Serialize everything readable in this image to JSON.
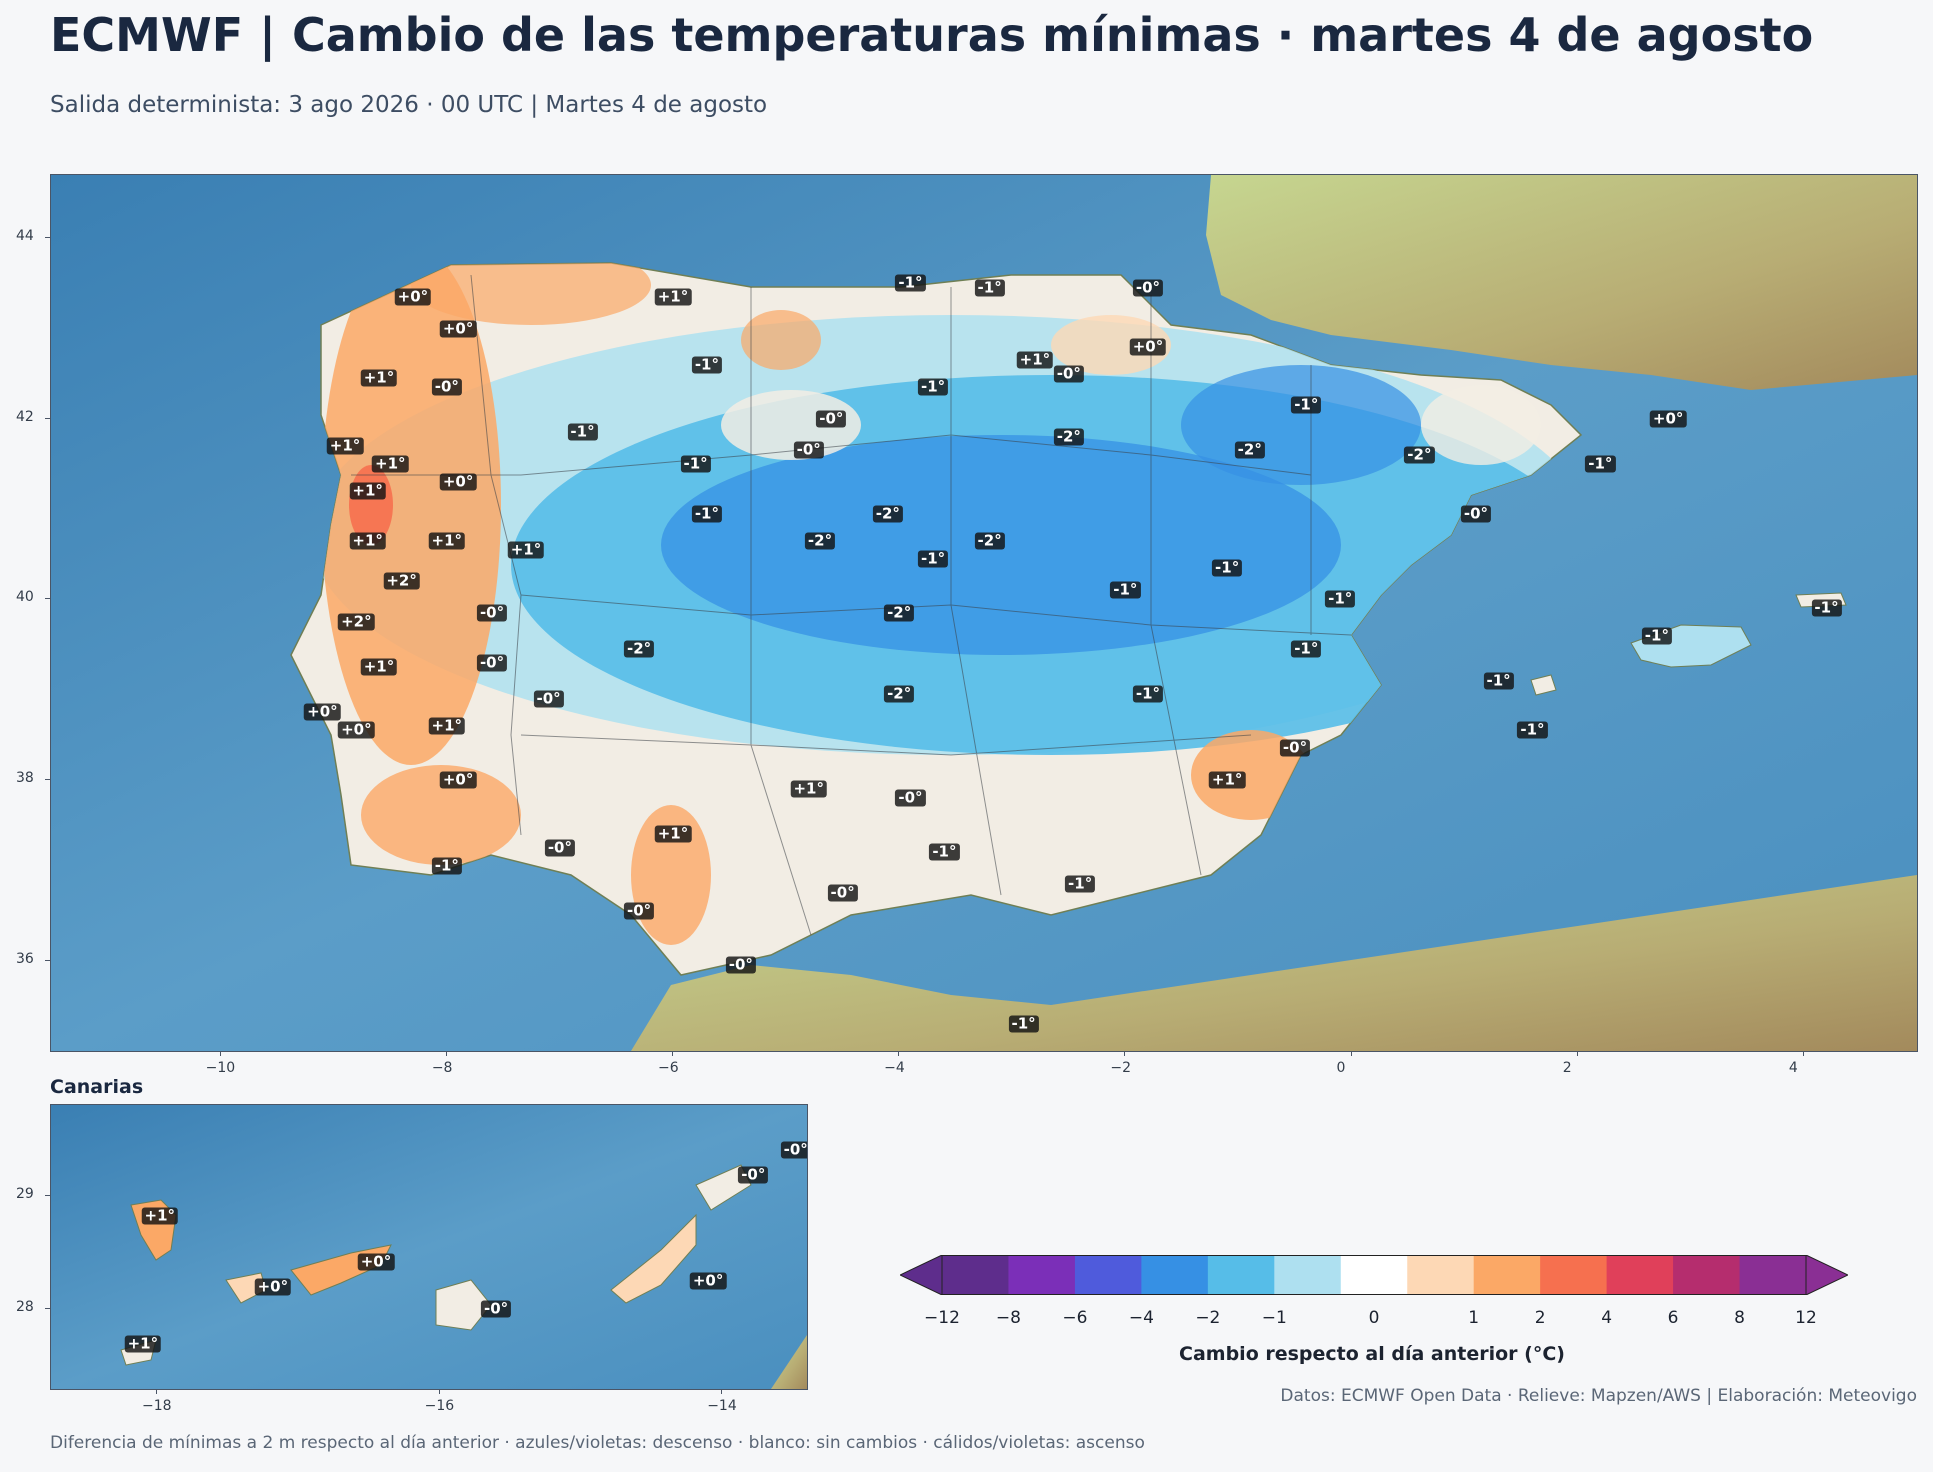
{
  "header": {
    "title": "ECMWF | Cambio de las temperaturas mínimas · martes 4 de agosto",
    "subtitle": "Salida determinista: 3 ago 2026 · 00 UTC  |  Martes 4 de agosto"
  },
  "main_map": {
    "lon_range": [
      -11.5,
      5.0
    ],
    "lat_range": [
      35.0,
      44.7
    ],
    "x_ticks": [
      "−10",
      "−8",
      "−6",
      "−4",
      "−2",
      "0",
      "2",
      "4"
    ],
    "x_tick_values": [
      -10,
      -8,
      -6,
      -4,
      -2,
      0,
      2,
      4
    ],
    "y_ticks": [
      "36",
      "38",
      "40",
      "42",
      "44"
    ],
    "y_tick_values": [
      36,
      38,
      40,
      42,
      44
    ],
    "labels": [
      {
        "lon": -8.3,
        "lat": 43.35,
        "text": "+0°"
      },
      {
        "lon": -6.0,
        "lat": 43.35,
        "text": "+1°"
      },
      {
        "lon": -3.9,
        "lat": 43.5,
        "text": "-1°"
      },
      {
        "lon": -3.2,
        "lat": 43.45,
        "text": "-1°"
      },
      {
        "lon": -1.8,
        "lat": 43.45,
        "text": "-0°"
      },
      {
        "lon": -7.9,
        "lat": 43.0,
        "text": "+0°"
      },
      {
        "lon": -1.8,
        "lat": 42.8,
        "text": "+0°"
      },
      {
        "lon": -5.7,
        "lat": 42.6,
        "text": "-1°"
      },
      {
        "lon": -2.8,
        "lat": 42.65,
        "text": "+1°"
      },
      {
        "lon": -2.5,
        "lat": 42.5,
        "text": "-0°"
      },
      {
        "lon": -8.6,
        "lat": 42.45,
        "text": "+1°"
      },
      {
        "lon": -8.0,
        "lat": 42.35,
        "text": "-0°"
      },
      {
        "lon": -3.7,
        "lat": 42.35,
        "text": "-1°"
      },
      {
        "lon": -0.4,
        "lat": 42.15,
        "text": "-1°"
      },
      {
        "lon": -4.6,
        "lat": 42.0,
        "text": "-0°"
      },
      {
        "lon": 2.8,
        "lat": 42.0,
        "text": "+0°"
      },
      {
        "lon": -6.8,
        "lat": 41.85,
        "text": "-1°"
      },
      {
        "lon": -2.5,
        "lat": 41.8,
        "text": "-2°"
      },
      {
        "lon": -8.9,
        "lat": 41.7,
        "text": "+1°"
      },
      {
        "lon": -4.8,
        "lat": 41.65,
        "text": "-0°"
      },
      {
        "lon": -0.9,
        "lat": 41.65,
        "text": "-2°"
      },
      {
        "lon": 0.6,
        "lat": 41.6,
        "text": "-2°"
      },
      {
        "lon": -8.5,
        "lat": 41.5,
        "text": "+1°"
      },
      {
        "lon": -5.8,
        "lat": 41.5,
        "text": "-1°"
      },
      {
        "lon": 2.2,
        "lat": 41.5,
        "text": "-1°"
      },
      {
        "lon": -7.9,
        "lat": 41.3,
        "text": "+0°"
      },
      {
        "lon": -8.7,
        "lat": 41.2,
        "text": "+1°"
      },
      {
        "lon": -5.7,
        "lat": 40.95,
        "text": "-1°"
      },
      {
        "lon": -4.1,
        "lat": 40.95,
        "text": "-2°"
      },
      {
        "lon": 1.1,
        "lat": 40.95,
        "text": "-0°"
      },
      {
        "lon": -8.7,
        "lat": 40.65,
        "text": "+1°"
      },
      {
        "lon": -8.0,
        "lat": 40.65,
        "text": "+1°"
      },
      {
        "lon": -4.7,
        "lat": 40.65,
        "text": "-2°"
      },
      {
        "lon": -3.2,
        "lat": 40.65,
        "text": "-2°"
      },
      {
        "lon": -7.3,
        "lat": 40.55,
        "text": "+1°"
      },
      {
        "lon": -3.7,
        "lat": 40.45,
        "text": "-1°"
      },
      {
        "lon": -1.1,
        "lat": 40.35,
        "text": "-1°"
      },
      {
        "lon": -8.4,
        "lat": 40.2,
        "text": "+2°"
      },
      {
        "lon": -2.0,
        "lat": 40.1,
        "text": "-1°"
      },
      {
        "lon": -0.1,
        "lat": 40.0,
        "text": "-1°"
      },
      {
        "lon": 4.2,
        "lat": 39.9,
        "text": "-1°"
      },
      {
        "lon": -7.6,
        "lat": 39.85,
        "text": "-0°"
      },
      {
        "lon": -4.0,
        "lat": 39.85,
        "text": "-2°"
      },
      {
        "lon": -8.8,
        "lat": 39.75,
        "text": "+2°"
      },
      {
        "lon": 2.7,
        "lat": 39.6,
        "text": "-1°"
      },
      {
        "lon": -6.3,
        "lat": 39.45,
        "text": "-2°"
      },
      {
        "lon": -0.4,
        "lat": 39.45,
        "text": "-1°"
      },
      {
        "lon": -7.6,
        "lat": 39.3,
        "text": "-0°"
      },
      {
        "lon": -8.6,
        "lat": 39.25,
        "text": "+1°"
      },
      {
        "lon": 1.3,
        "lat": 39.1,
        "text": "-1°"
      },
      {
        "lon": -4.0,
        "lat": 38.95,
        "text": "-2°"
      },
      {
        "lon": -1.8,
        "lat": 38.95,
        "text": "-1°"
      },
      {
        "lon": -7.1,
        "lat": 38.9,
        "text": "-0°"
      },
      {
        "lon": -9.1,
        "lat": 38.75,
        "text": "+0°"
      },
      {
        "lon": -8.0,
        "lat": 38.6,
        "text": "+1°"
      },
      {
        "lon": -8.8,
        "lat": 38.55,
        "text": "+0°"
      },
      {
        "lon": 1.6,
        "lat": 38.55,
        "text": "-1°"
      },
      {
        "lon": -0.5,
        "lat": 38.35,
        "text": "-0°"
      },
      {
        "lon": -7.9,
        "lat": 38.0,
        "text": "+0°"
      },
      {
        "lon": -1.1,
        "lat": 38.0,
        "text": "+1°"
      },
      {
        "lon": -4.8,
        "lat": 37.9,
        "text": "+1°"
      },
      {
        "lon": -3.9,
        "lat": 37.8,
        "text": "-0°"
      },
      {
        "lon": -6.0,
        "lat": 37.4,
        "text": "+1°"
      },
      {
        "lon": -7.0,
        "lat": 37.25,
        "text": "-0°"
      },
      {
        "lon": -3.6,
        "lat": 37.2,
        "text": "-1°"
      },
      {
        "lon": -8.0,
        "lat": 37.05,
        "text": "-1°"
      },
      {
        "lon": -2.4,
        "lat": 36.85,
        "text": "-1°"
      },
      {
        "lon": -4.5,
        "lat": 36.75,
        "text": "-0°"
      },
      {
        "lon": -6.3,
        "lat": 36.55,
        "text": "-0°"
      },
      {
        "lon": -5.4,
        "lat": 35.95,
        "text": "-0°"
      },
      {
        "lon": -2.9,
        "lat": 35.3,
        "text": "-1°"
      }
    ]
  },
  "inset": {
    "title": "Canarias",
    "lon_range": [
      -18.75,
      -13.4
    ],
    "lat_range": [
      27.3,
      29.8
    ],
    "x_ticks": [
      "−18",
      "−16",
      "−14"
    ],
    "x_tick_values": [
      -18,
      -16,
      -14
    ],
    "y_ticks": [
      "28",
      "29"
    ],
    "y_tick_values": [
      28,
      29
    ],
    "labels": [
      {
        "lon": -17.98,
        "lat": 28.82,
        "text": "+1°"
      },
      {
        "lon": -17.18,
        "lat": 28.2,
        "text": "+0°"
      },
      {
        "lon": -16.45,
        "lat": 28.42,
        "text": "+0°"
      },
      {
        "lon": -15.6,
        "lat": 28.0,
        "text": "-0°"
      },
      {
        "lon": -14.1,
        "lat": 28.25,
        "text": "+0°"
      },
      {
        "lon": -13.78,
        "lat": 29.18,
        "text": "-0°"
      },
      {
        "lon": -13.48,
        "lat": 29.4,
        "text": "-0°"
      },
      {
        "lon": -18.1,
        "lat": 27.7,
        "text": "+1°"
      }
    ]
  },
  "colorbar": {
    "title": "Cambio respecto al día anterior (°C)",
    "tick_labels": [
      "−12",
      "−8",
      "−6",
      "−4",
      "−2",
      "−1",
      "0",
      "1",
      "2",
      "4",
      "6",
      "8",
      "12"
    ],
    "bins": [
      {
        "from": -12,
        "to": -8,
        "color": "#5e2d8c"
      },
      {
        "from": -8,
        "to": -6,
        "color": "#7b2fb8"
      },
      {
        "from": -6,
        "to": -4,
        "color": "#4f5bdc"
      },
      {
        "from": -4,
        "to": -2,
        "color": "#3690e4"
      },
      {
        "from": -2,
        "to": -1,
        "color": "#56bde8"
      },
      {
        "from": -1,
        "to": -0.5,
        "color": "#aee0f0"
      },
      {
        "from": -0.5,
        "to": 0.5,
        "color": "#ffffff"
      },
      {
        "from": 0.5,
        "to": 1,
        "color": "#fdd8b5"
      },
      {
        "from": 1,
        "to": 2,
        "color": "#fba866"
      },
      {
        "from": 2,
        "to": 4,
        "color": "#f6704f"
      },
      {
        "from": 4,
        "to": 6,
        "color": "#e0405a"
      },
      {
        "from": 6,
        "to": 8,
        "color": "#b52d6e"
      },
      {
        "from": 8,
        "to": 12,
        "color": "#8a2f94"
      }
    ],
    "under_color": "#5e2d8c",
    "over_color": "#8a2f94"
  },
  "footer": {
    "credits": "Datos: ECMWF Open Data · Relieve: Mapzen/AWS  |  Elaboración: Meteovigo",
    "note": "Diferencia de mínimas a 2 m respecto al día anterior · azules/violetas: descenso · blanco: sin cambios · cálidos/violetas: ascenso"
  }
}
